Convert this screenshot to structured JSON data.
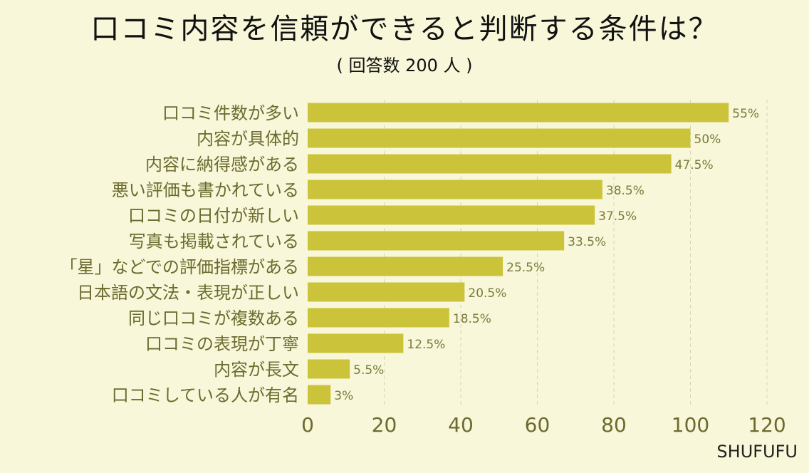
{
  "title": "口コミ内容を信頼ができると判断する条件は？",
  "subtitle": "( 回答数 200 人 )",
  "brand": "SHUFUFU",
  "colors": {
    "bar": "#cbc43a",
    "background": "#f8f7d9",
    "grid": "#d6d4b4"
  },
  "chart_data": {
    "type": "bar",
    "orientation": "horizontal",
    "categories": [
      "口コミ件数が多い",
      "内容が具体的",
      "内容に納得感がある",
      "悪い評価も書かれている",
      "口コミの日付が新しい",
      "写真も掲載されている",
      "「星」などでの評価指標がある",
      "日本語の文法・表現が正しい",
      "同じ口コミが複数ある",
      "口コミの表現が丁寧",
      "内容が長文",
      "口コミしている人が有名"
    ],
    "values": [
      110,
      100,
      95,
      77,
      75,
      67,
      51,
      41,
      37,
      25,
      11,
      6
    ],
    "value_labels": [
      "55%",
      "50%",
      "47.5%",
      "38.5%",
      "37.5%",
      "33.5%",
      "25.5%",
      "20.5%",
      "18.5%",
      "12.5%",
      "5.5%",
      "3%"
    ],
    "xlim": [
      0,
      120
    ],
    "xticks": [
      0,
      20,
      40,
      60,
      80,
      100,
      120
    ],
    "grid": true
  }
}
